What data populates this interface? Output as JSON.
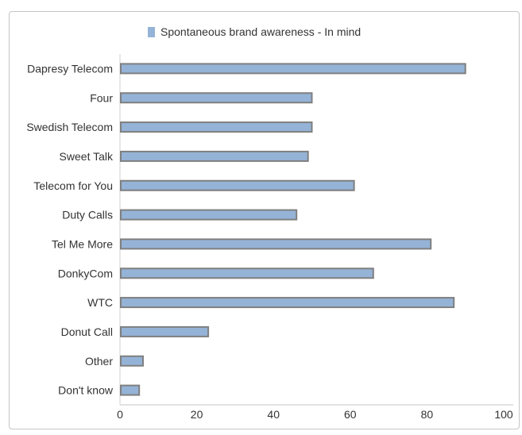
{
  "chart_data": {
    "type": "bar",
    "orientation": "horizontal",
    "title": "",
    "xlabel": "",
    "ylabel": "",
    "categories": [
      "Dapresy Telecom",
      "Four",
      "Swedish Telecom",
      "Sweet Talk",
      "Telecom for You",
      "Duty Calls",
      "Tel Me More",
      "DonkyCom",
      "WTC",
      "Donut Call",
      "Other",
      "Don't know"
    ],
    "series": [
      {
        "name": "Spontaneous brand awareness - In mind",
        "color": "#95b3d7",
        "border_color": "#7f7f7f",
        "values": [
          90,
          50,
          50,
          49,
          61,
          46,
          81,
          66,
          87,
          23,
          6,
          5
        ]
      }
    ],
    "xlim": [
      0,
      100
    ],
    "xticks": [
      0,
      20,
      40,
      60,
      80,
      100
    ],
    "grid": false,
    "legend_position": "top"
  }
}
